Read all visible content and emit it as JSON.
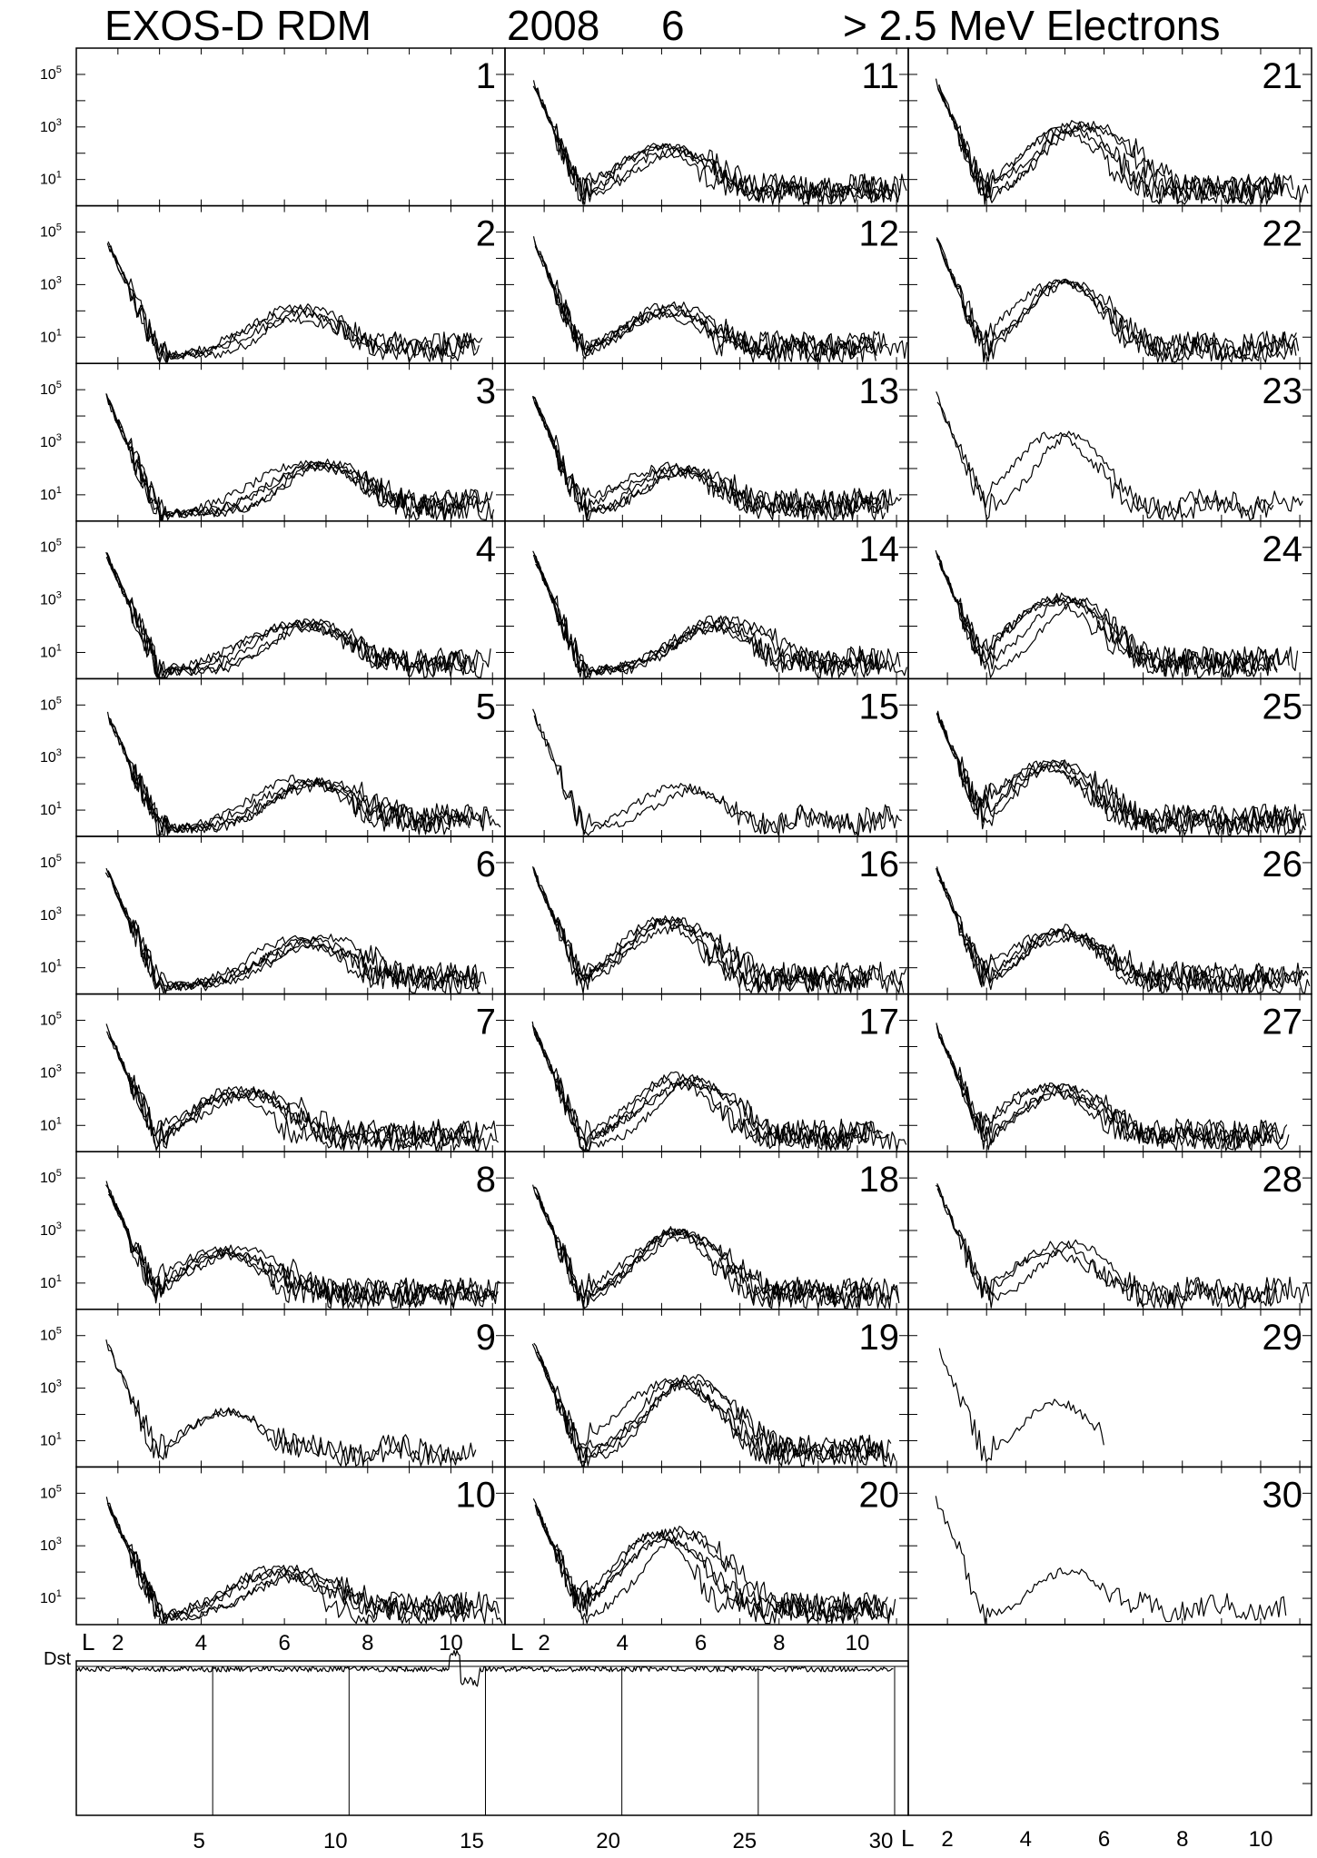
{
  "header": {
    "mission": "EXOS-D RDM",
    "year": "2008",
    "month": "6",
    "energy": "> 2.5  MeV Electrons"
  },
  "chart_data": {
    "type": "line",
    "title": "EXOS-D RDM 2008 6 > 2.5 MeV Electrons",
    "xlabel": "L",
    "xlim": [
      1,
      11.3
    ],
    "x_ticks": [
      2,
      4,
      6,
      8,
      10
    ],
    "ylim_log10": [
      0,
      6
    ],
    "y_ticks": [
      "10^5",
      "10^3",
      "10^1"
    ],
    "layout": "panel grid: columns of days 1-10, 11-20, 21-30",
    "days": [
      {
        "day": 1,
        "passes": 0,
        "peak_L": 0,
        "peak": 0
      },
      {
        "day": 2,
        "passes": 4,
        "peak_L": 6.5,
        "peak": 50
      },
      {
        "day": 3,
        "passes": 5,
        "peak_L": 7.0,
        "peak": 80
      },
      {
        "day": 4,
        "passes": 5,
        "peak_L": 6.5,
        "peak": 80
      },
      {
        "day": 5,
        "passes": 5,
        "peak_L": 6.5,
        "peak": 60
      },
      {
        "day": 6,
        "passes": 5,
        "peak_L": 6.5,
        "peak": 60
      },
      {
        "day": 7,
        "passes": 5,
        "peak_L": 5.0,
        "peak": 100
      },
      {
        "day": 8,
        "passes": 5,
        "peak_L": 4.8,
        "peak": 100
      },
      {
        "day": 9,
        "passes": 2,
        "peak_L": 4.5,
        "peak": 50
      },
      {
        "day": 10,
        "passes": 5,
        "peak_L": 6.0,
        "peak": 60
      },
      {
        "day": 11,
        "passes": 5,
        "peak_L": 5.0,
        "peak": 80
      },
      {
        "day": 12,
        "passes": 5,
        "peak_L": 5.0,
        "peak": 60
      },
      {
        "day": 13,
        "passes": 5,
        "peak_L": 5.5,
        "peak": 60
      },
      {
        "day": 14,
        "passes": 5,
        "peak_L": 6.5,
        "peak": 80
      },
      {
        "day": 15,
        "passes": 2,
        "peak_L": 5.8,
        "peak": 40
      },
      {
        "day": 16,
        "passes": 5,
        "peak_L": 5.2,
        "peak": 300
      },
      {
        "day": 17,
        "passes": 5,
        "peak_L": 5.5,
        "peak": 300
      },
      {
        "day": 18,
        "passes": 5,
        "peak_L": 5.5,
        "peak": 400
      },
      {
        "day": 19,
        "passes": 5,
        "peak_L": 5.6,
        "peak": 1000
      },
      {
        "day": 20,
        "passes": 5,
        "peak_L": 5.2,
        "peak": 1500
      },
      {
        "day": 21,
        "passes": 5,
        "peak_L": 5.2,
        "peak": 700
      },
      {
        "day": 22,
        "passes": 4,
        "peak_L": 5.2,
        "peak": 700
      },
      {
        "day": 23,
        "passes": 2,
        "peak_L": 5.0,
        "peak": 800
      },
      {
        "day": 24,
        "passes": 5,
        "peak_L": 5.0,
        "peak": 600
      },
      {
        "day": 25,
        "passes": 5,
        "peak_L": 4.8,
        "peak": 300
      },
      {
        "day": 26,
        "passes": 5,
        "peak_L": 4.8,
        "peak": 150
      },
      {
        "day": 27,
        "passes": 5,
        "peak_L": 4.8,
        "peak": 150
      },
      {
        "day": 28,
        "passes": 3,
        "peak_L": 5.0,
        "peak": 150
      },
      {
        "day": 29,
        "passes": 1,
        "peak_L": 4.8,
        "peak": 150
      },
      {
        "day": 30,
        "passes": 1,
        "peak_L": 5.0,
        "peak": 100
      }
    ],
    "dst": {
      "label": "Dst",
      "x_ticks": [
        5,
        10,
        15,
        20,
        25,
        30
      ],
      "xlim": [
        0.5,
        31
      ],
      "note": "daily-resolution Dst trace near zero with small disturbance near day 14-15"
    },
    "bottom_axis_label": "L",
    "bottom_axis_ticks": [
      2,
      4,
      6,
      8,
      10
    ]
  }
}
